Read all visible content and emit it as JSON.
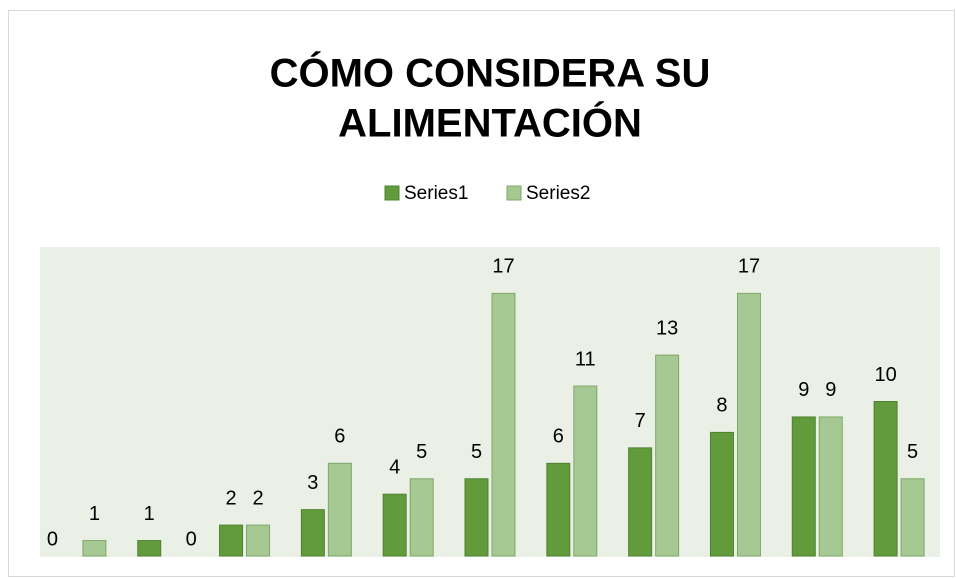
{
  "chart_data": {
    "type": "bar",
    "title": [
      "CÓMO CONSIDERA SU",
      "ALIMENTACIÓN"
    ],
    "categories": [
      null,
      null,
      null,
      null,
      null,
      null,
      null,
      null,
      null,
      null,
      null
    ],
    "series": [
      {
        "name": "Series1",
        "color": "#619b3b",
        "values": [
          0,
          1,
          2,
          3,
          4,
          5,
          6,
          7,
          8,
          9,
          10
        ]
      },
      {
        "name": "Series2",
        "color": "#a6c993",
        "values": [
          1,
          0,
          2,
          6,
          5,
          17,
          11,
          13,
          17,
          9,
          5
        ]
      }
    ],
    "ylim": [
      0,
      20
    ],
    "legend": "top"
  }
}
